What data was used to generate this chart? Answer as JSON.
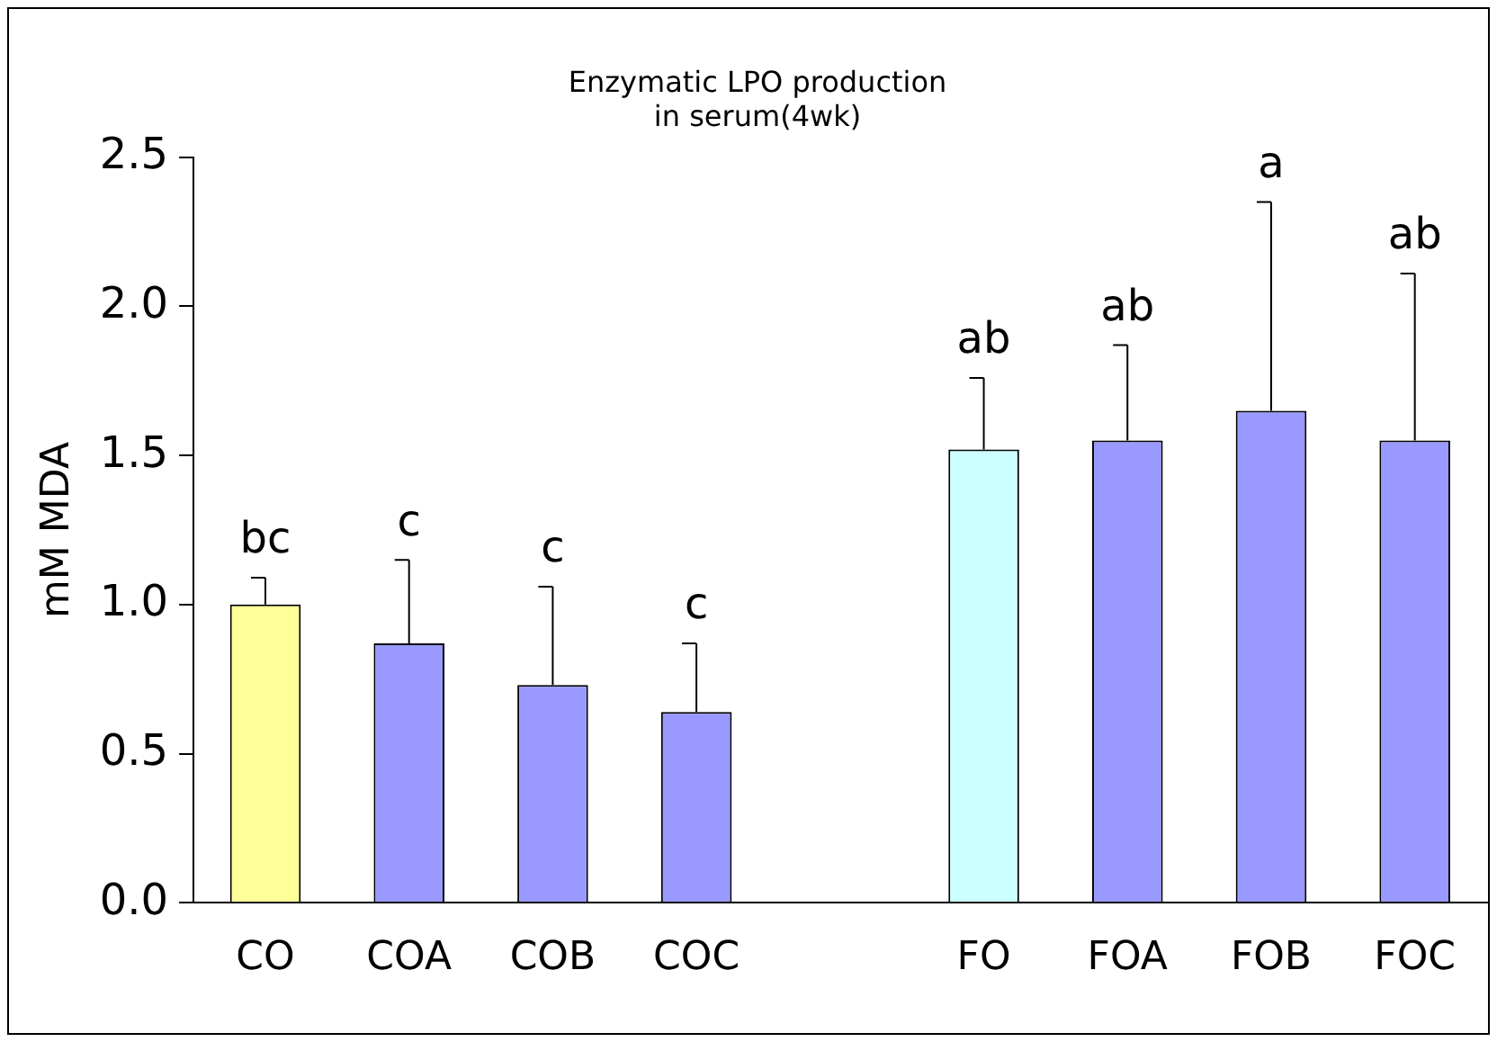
{
  "chart_data": {
    "type": "bar",
    "title": "Enzymatic LPO production\nin serum(4wk)",
    "ylabel": "mM MDA",
    "categories": [
      "CO",
      "COA",
      "COB",
      "COC",
      null,
      "FO",
      "FOA",
      "FOB",
      "FOC"
    ],
    "values": [
      1.0,
      0.87,
      0.73,
      0.64,
      null,
      1.52,
      1.55,
      1.65,
      1.55
    ],
    "colors": [
      "#ffff99",
      "#9999ff",
      "#9999ff",
      "#9999ff",
      "#9999ff",
      "#ccffff",
      "#9999ff",
      "#9999ff",
      "#9999ff"
    ],
    "errors": [
      [
        1.0,
        1.09
      ],
      [
        0.87,
        1.15
      ],
      [
        0.73,
        1.06
      ],
      [
        0.64,
        0.87
      ],
      null,
      [
        1.52,
        1.76
      ],
      [
        1.55,
        1.87
      ],
      [
        1.65,
        2.35
      ],
      [
        1.55,
        2.11
      ]
    ],
    "annotations": [
      {
        "text": "bc",
        "x": "CO",
        "y": 1.09
      },
      {
        "text": "c",
        "x": "COA",
        "y": 1.15
      },
      {
        "text": "c",
        "x": "COB",
        "y": 1.06
      },
      {
        "text": "c",
        "x": "COC",
        "y": 0.87
      },
      {
        "text": "ab",
        "x": "FO",
        "y": 1.76
      },
      {
        "text": "ab",
        "x": "FOA",
        "y": 1.87
      },
      {
        "text": "a",
        "x": "FOB",
        "y": 2.35
      },
      {
        "text": "ab",
        "x": "FOC",
        "y": 2.11
      }
    ],
    "ylim": [
      0,
      2.5
    ],
    "yticks": [
      {
        "value": 0,
        "label": "0.0"
      },
      {
        "value": 0.5,
        "label": "0.5"
      },
      {
        "value": 1,
        "label": "1.0"
      },
      {
        "value": 1.5,
        "label": "1.5"
      },
      {
        "value": 2,
        "label": "2.0"
      },
      {
        "value": 2.5,
        "label": "2.5"
      }
    ],
    "grid": false,
    "legend": false
  }
}
